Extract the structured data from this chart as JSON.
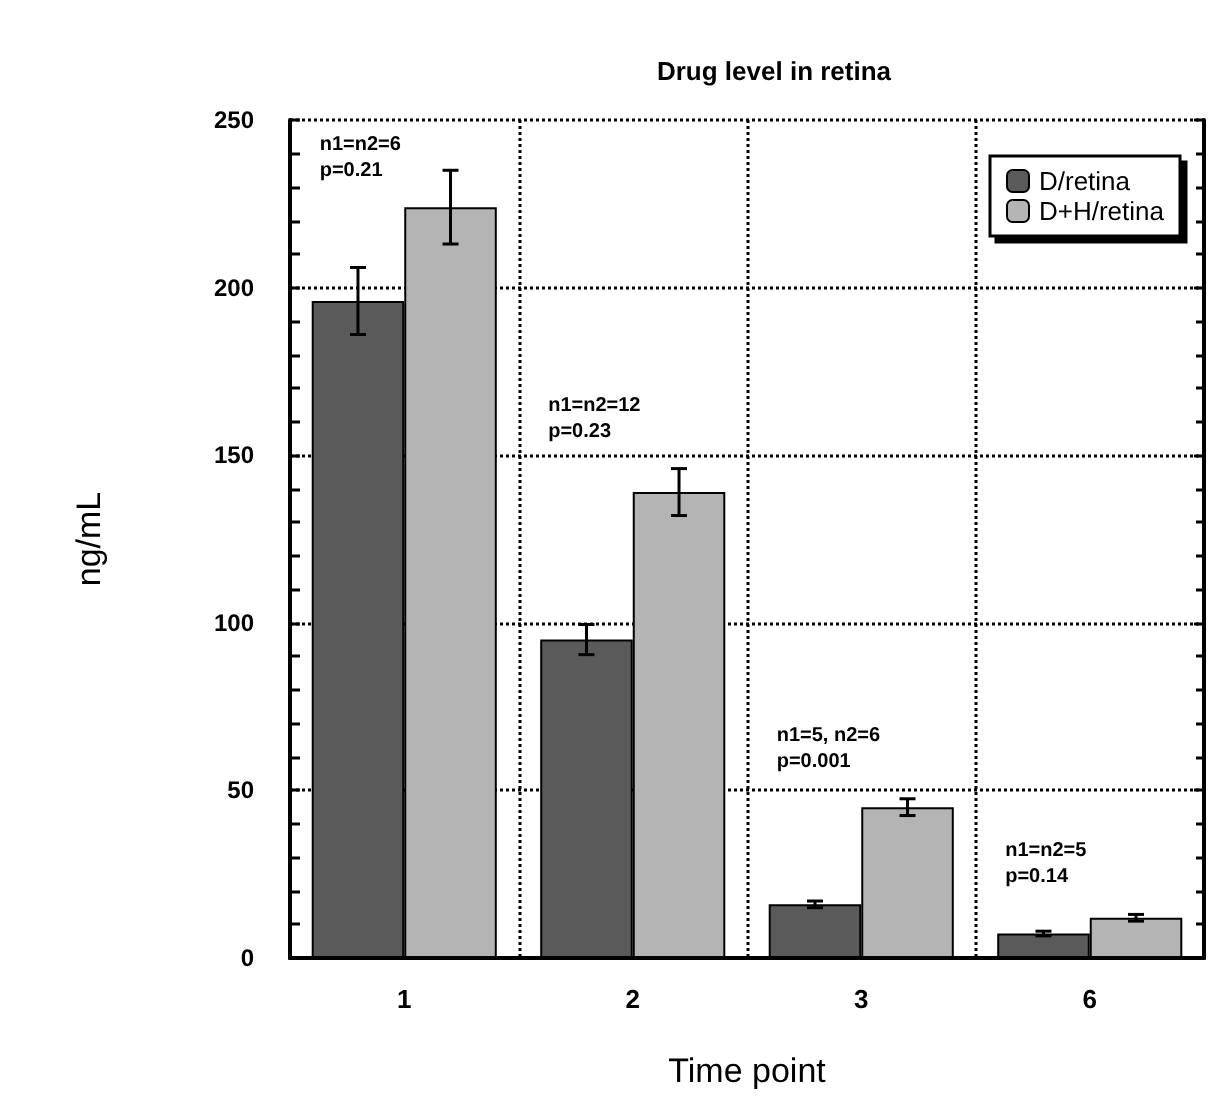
{
  "chart_data": {
    "type": "bar",
    "title": "Drug level in retina",
    "xlabel": "Time point",
    "ylabel": "ng/mL",
    "categories": [
      "1",
      "2",
      "3",
      "6"
    ],
    "series": [
      {
        "name": "D/retina",
        "color": "#5a5a5a",
        "values": [
          196,
          95,
          16,
          7.3
        ],
        "errors": [
          10,
          4.5,
          1,
          0.7
        ]
      },
      {
        "name": "D+H/retina",
        "color": "#b4b4b4",
        "values": [
          224,
          139,
          45,
          12
        ],
        "errors": [
          11,
          7,
          2.5,
          1
        ]
      }
    ],
    "ylim": [
      0,
      250
    ],
    "yticks": [
      0,
      50,
      100,
      150,
      200,
      250
    ],
    "grid": true,
    "legend": "top right",
    "annotations": [
      "n1=n2=6\np=0.21",
      "n1=n2=12\np=0.23",
      "n1=5, n2=6\np=0.001",
      "n1=n2=5\np=0.14"
    ]
  }
}
